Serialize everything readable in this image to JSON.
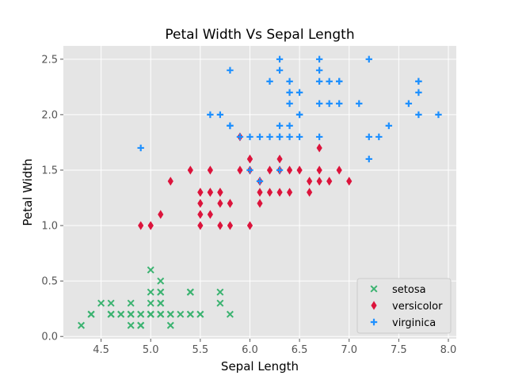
{
  "chart_data": {
    "type": "scatter",
    "title": "Petal Width Vs Sepal Length",
    "xlabel": "Sepal Length",
    "ylabel": "Petal Width",
    "xlim": [
      4.12,
      8.08
    ],
    "ylim": [
      -0.02,
      2.62
    ],
    "xticks": [
      "4.5",
      "5.0",
      "5.5",
      "6.0",
      "6.5",
      "7.0",
      "7.5",
      "8.0"
    ],
    "yticks": [
      "0.0",
      "0.5",
      "1.0",
      "1.5",
      "2.0",
      "2.5"
    ],
    "grid": true,
    "legend_position": "lower-right",
    "colors": {
      "axes_background": "#e5e5e5",
      "grid": "#ffffff",
      "tick_label": "#555555"
    },
    "series": [
      {
        "name": "setosa",
        "marker": "x",
        "color": "#3cb371",
        "x": [
          5.1,
          4.9,
          4.7,
          4.6,
          5.0,
          5.4,
          4.6,
          5.0,
          4.4,
          4.9,
          5.4,
          4.8,
          4.8,
          4.3,
          5.8,
          5.7,
          5.4,
          5.1,
          5.7,
          5.1,
          5.4,
          5.1,
          4.6,
          5.1,
          4.8,
          5.0,
          5.0,
          5.2,
          5.2,
          4.7,
          4.8,
          5.4,
          5.2,
          5.5,
          4.9,
          5.0,
          5.5,
          4.9,
          4.4,
          5.1,
          5.0,
          4.5,
          4.4,
          5.0,
          5.1,
          4.8,
          5.1,
          4.6,
          5.3,
          5.0
        ],
        "y": [
          0.2,
          0.2,
          0.2,
          0.2,
          0.2,
          0.4,
          0.3,
          0.2,
          0.2,
          0.1,
          0.2,
          0.2,
          0.1,
          0.1,
          0.2,
          0.4,
          0.4,
          0.3,
          0.3,
          0.3,
          0.2,
          0.4,
          0.2,
          0.5,
          0.2,
          0.2,
          0.4,
          0.2,
          0.2,
          0.2,
          0.2,
          0.4,
          0.1,
          0.2,
          0.2,
          0.2,
          0.2,
          0.1,
          0.2,
          0.2,
          0.3,
          0.3,
          0.2,
          0.6,
          0.4,
          0.3,
          0.2,
          0.2,
          0.2,
          0.2
        ]
      },
      {
        "name": "versicolor",
        "marker": "diamond",
        "color": "#dc143c",
        "x": [
          7.0,
          6.4,
          6.9,
          5.5,
          6.5,
          5.7,
          6.3,
          4.9,
          6.6,
          5.2,
          5.0,
          5.9,
          6.0,
          6.1,
          5.6,
          6.7,
          5.6,
          5.8,
          6.2,
          5.6,
          5.9,
          6.1,
          6.3,
          6.1,
          6.4,
          6.6,
          6.8,
          6.7,
          6.0,
          5.7,
          5.5,
          5.5,
          5.8,
          6.0,
          5.4,
          6.0,
          6.7,
          6.3,
          5.6,
          5.5,
          5.5,
          6.1,
          5.8,
          5.0,
          5.6,
          5.7,
          5.7,
          6.2,
          5.1,
          5.7
        ],
        "y": [
          1.4,
          1.5,
          1.5,
          1.3,
          1.5,
          1.3,
          1.6,
          1.0,
          1.3,
          1.4,
          1.0,
          1.5,
          1.0,
          1.4,
          1.3,
          1.4,
          1.5,
          1.0,
          1.5,
          1.1,
          1.8,
          1.3,
          1.5,
          1.2,
          1.3,
          1.4,
          1.4,
          1.7,
          1.5,
          1.0,
          1.1,
          1.0,
          1.2,
          1.6,
          1.5,
          1.6,
          1.5,
          1.3,
          1.3,
          1.3,
          1.2,
          1.4,
          1.2,
          1.0,
          1.3,
          1.2,
          1.3,
          1.3,
          1.1,
          1.3
        ]
      },
      {
        "name": "virginica",
        "marker": "plus",
        "color": "#1e90ff",
        "x": [
          6.3,
          5.8,
          7.1,
          6.3,
          6.5,
          7.6,
          4.9,
          7.3,
          6.7,
          7.2,
          6.5,
          6.4,
          6.8,
          5.7,
          5.8,
          6.4,
          6.5,
          7.7,
          7.7,
          6.0,
          6.9,
          5.6,
          7.7,
          6.3,
          6.7,
          7.2,
          6.2,
          6.1,
          6.4,
          7.2,
          7.4,
          7.9,
          6.4,
          6.3,
          6.1,
          7.7,
          6.3,
          6.4,
          6.0,
          6.9,
          6.7,
          6.9,
          5.8,
          6.8,
          6.7,
          6.7,
          6.3,
          6.5,
          6.2,
          5.9
        ],
        "y": [
          2.5,
          1.9,
          2.1,
          1.8,
          2.2,
          2.1,
          1.7,
          1.8,
          1.8,
          2.5,
          2.0,
          1.9,
          2.1,
          2.0,
          2.4,
          2.3,
          1.8,
          2.2,
          2.3,
          1.5,
          2.3,
          2.0,
          2.0,
          1.8,
          2.1,
          1.8,
          1.8,
          1.8,
          2.1,
          1.6,
          1.9,
          2.0,
          2.2,
          1.5,
          1.4,
          2.3,
          2.4,
          1.8,
          1.8,
          2.1,
          2.4,
          2.3,
          1.9,
          2.3,
          2.5,
          2.3,
          1.9,
          2.0,
          2.3,
          1.8
        ]
      }
    ]
  }
}
